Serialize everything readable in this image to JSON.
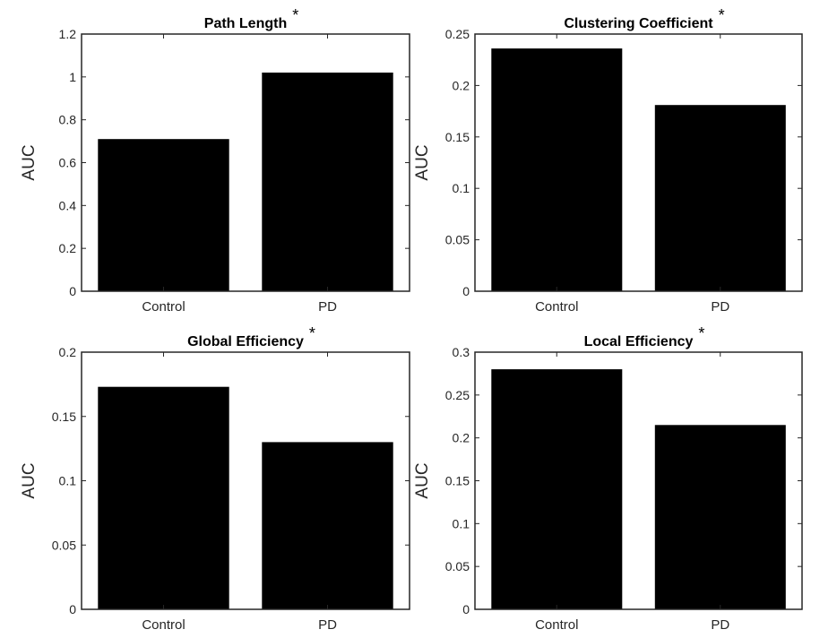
{
  "figure": {
    "colors": {
      "bar": "#000000",
      "axis": "#262626",
      "background": "#ffffff"
    }
  },
  "chart_data": [
    {
      "type": "bar",
      "title": "Path Length",
      "marker": "*",
      "categories": [
        "Control",
        "PD"
      ],
      "values": [
        0.71,
        1.02
      ],
      "ylabel": "AUC",
      "ylim": [
        0,
        1.2
      ],
      "yticks": [
        0,
        0.2,
        0.4,
        0.6,
        0.8,
        1,
        1.2
      ],
      "ytick_labels": [
        "0",
        "0.2",
        "0.4",
        "0.6",
        "0.8",
        "1",
        "1.2"
      ],
      "grid": false,
      "legend": "none"
    },
    {
      "type": "bar",
      "title": "Clustering Coefficient",
      "marker": "*",
      "categories": [
        "Control",
        "PD"
      ],
      "values": [
        0.236,
        0.181
      ],
      "ylabel": "AUC",
      "ylim": [
        0,
        0.25
      ],
      "yticks": [
        0,
        0.05,
        0.1,
        0.15,
        0.2,
        0.25
      ],
      "ytick_labels": [
        "0",
        "0.05",
        "0.1",
        "0.15",
        "0.2",
        "0.25"
      ],
      "grid": false,
      "legend": "none"
    },
    {
      "type": "bar",
      "title": "Global Efficiency",
      "marker": "*",
      "categories": [
        "Control",
        "PD"
      ],
      "values": [
        0.173,
        0.13
      ],
      "ylabel": "AUC",
      "ylim": [
        0,
        0.2
      ],
      "yticks": [
        0,
        0.05,
        0.1,
        0.15,
        0.2
      ],
      "ytick_labels": [
        "0",
        "0.05",
        "0.1",
        "0.15",
        "0.2"
      ],
      "grid": false,
      "legend": "none"
    },
    {
      "type": "bar",
      "title": "Local Efficiency",
      "marker": "*",
      "categories": [
        "Control",
        "PD"
      ],
      "values": [
        0.28,
        0.215
      ],
      "ylabel": "AUC",
      "ylim": [
        0,
        0.3
      ],
      "yticks": [
        0,
        0.05,
        0.1,
        0.15,
        0.2,
        0.25,
        0.3
      ],
      "ytick_labels": [
        "0",
        "0.05",
        "0.1",
        "0.15",
        "0.2",
        "0.25",
        "0.3"
      ],
      "grid": false,
      "legend": "none"
    }
  ]
}
